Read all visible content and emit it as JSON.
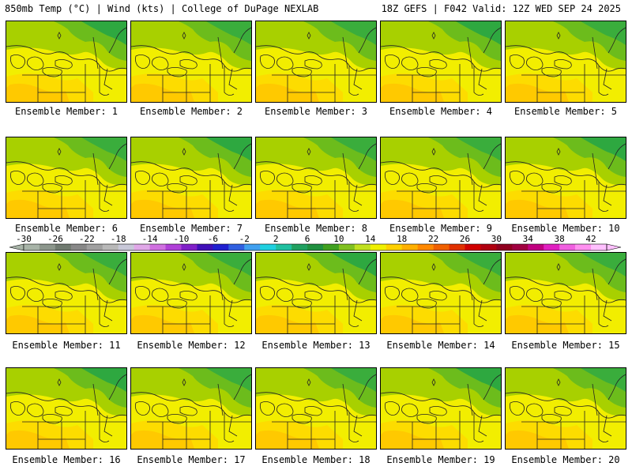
{
  "header": {
    "left": "850mb Temp (°C) | Wind (kts) | College of DuPage NEXLAB",
    "right": "18Z GEFS | F042 Valid: 12Z WED SEP 24 2025"
  },
  "members": [
    "Ensemble Member: 1",
    "Ensemble Member: 2",
    "Ensemble Member: 3",
    "Ensemble Member: 4",
    "Ensemble Member: 5",
    "Ensemble Member: 6",
    "Ensemble Member: 7",
    "Ensemble Member: 8",
    "Ensemble Member: 9",
    "Ensemble Member: 10",
    "Ensemble Member: 11",
    "Ensemble Member: 12",
    "Ensemble Member: 13",
    "Ensemble Member: 14",
    "Ensemble Member: 15",
    "Ensemble Member: 16",
    "Ensemble Member: 17",
    "Ensemble Member: 18",
    "Ensemble Member: 19",
    "Ensemble Member: 20"
  ],
  "colorbar": {
    "ticks": [
      "-30",
      "-26",
      "-22",
      "-18",
      "-14",
      "-10",
      "-6",
      "-2",
      "2",
      "6",
      "10",
      "14",
      "18",
      "22",
      "26",
      "30",
      "34",
      "38",
      "42"
    ],
    "colors": [
      "#a8b4a8",
      "#8c968c",
      "#707a70",
      "#888888",
      "#a0a0a0",
      "#b8b8b8",
      "#c8c8d8",
      "#e0a8e8",
      "#d070e0",
      "#b040d8",
      "#8020c8",
      "#4010b8",
      "#2020d0",
      "#3060e0",
      "#40a0f0",
      "#20d0e0",
      "#20c0a0",
      "#20a060",
      "#209040",
      "#40a020",
      "#80c020",
      "#c0e020",
      "#f0f000",
      "#ffd000",
      "#ffb000",
      "#ff8800",
      "#f06000",
      "#e03000",
      "#d00000",
      "#b00010",
      "#900020",
      "#a00040",
      "#c00080",
      "#e020c0",
      "#f060e0",
      "#ff90f0",
      "#ffc0ff"
    ]
  }
}
